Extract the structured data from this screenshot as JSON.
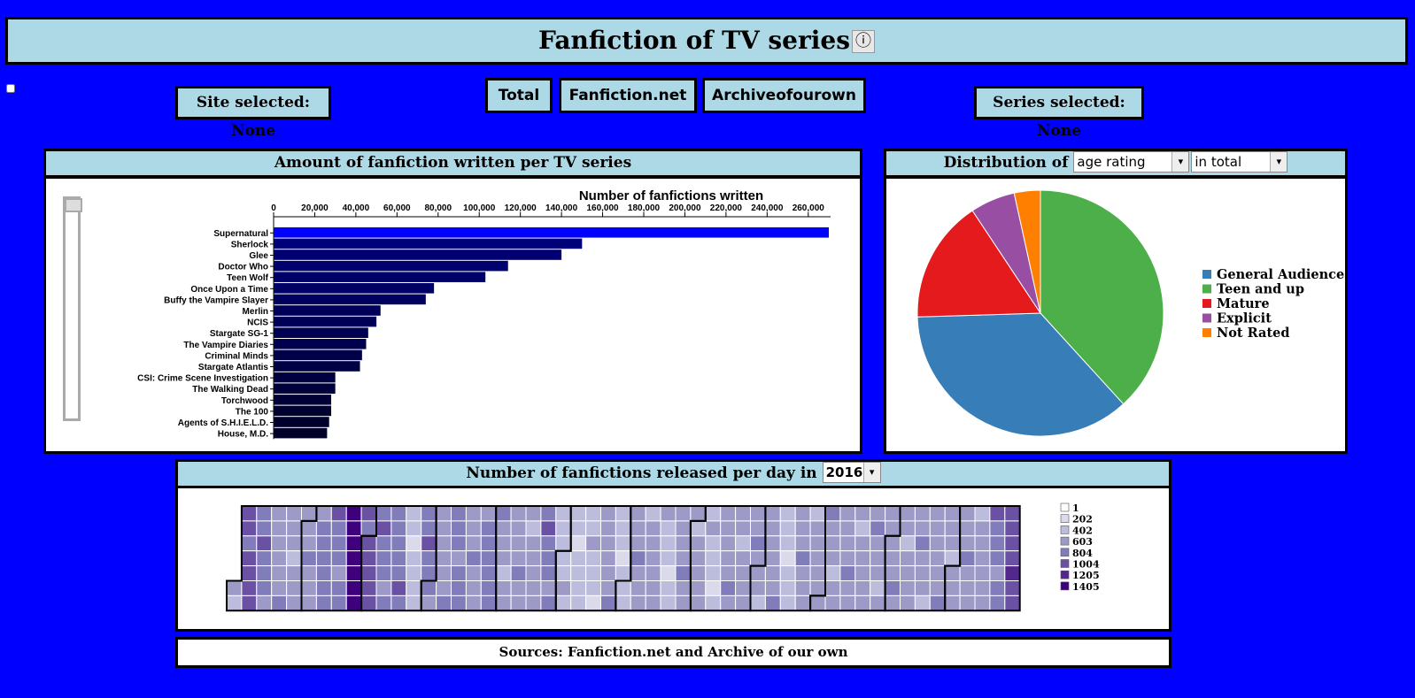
{
  "header": {
    "title": "Fanfiction of TV series",
    "info_icon": "info-icon"
  },
  "controls": {
    "site_selected": "Site selected: None",
    "series_selected": "Series selected: None",
    "buttons": [
      "Total",
      "Fanfiction.net",
      "Archiveofourown"
    ]
  },
  "bar_panel": {
    "title": "Amount of fanfiction written per TV series"
  },
  "pie_panel": {
    "title_prefix": "Distribution of",
    "metric_selected": "age rating",
    "scope_selected": "in total"
  },
  "calendar_panel": {
    "title_prefix": "Number of fanfictions released per day in",
    "year_selected": "2016"
  },
  "footer": {
    "sources": "Sources: Fanfiction.net and Archive of our own"
  },
  "colors": {
    "background": "#0000ff",
    "panel_header": "#add8e6",
    "bar_highlight": "#0000ff",
    "bar_dark": "#000033"
  },
  "chart_data": [
    {
      "type": "bar",
      "orientation": "horizontal",
      "title": "Number of fanfictions written",
      "categories": [
        "Supernatural",
        "Sherlock",
        "Glee",
        "Doctor Who",
        "Teen Wolf",
        "Once Upon a Time",
        "Buffy the Vampire Slayer",
        "Merlin",
        "NCIS",
        "Stargate SG-1",
        "The Vampire Diaries",
        "Criminal Minds",
        "Stargate Atlantis",
        "CSI: Crime Scene Investigation",
        "The Walking Dead",
        "Torchwood",
        "The 100",
        "Agents of S.H.I.E.L.D.",
        "House, M.D."
      ],
      "values": [
        270000,
        150000,
        140000,
        114000,
        103000,
        78000,
        74000,
        52000,
        50000,
        46000,
        45000,
        43000,
        42000,
        30000,
        30000,
        28000,
        28000,
        27000,
        26000
      ],
      "xlim": [
        0,
        270000
      ],
      "xticks": [
        0,
        20000,
        40000,
        60000,
        80000,
        100000,
        120000,
        140000,
        160000,
        180000,
        200000,
        220000,
        240000,
        260000
      ],
      "xtick_labels": [
        "0",
        "20,000",
        "40,000",
        "60,000",
        "80,000",
        "100,000",
        "120,000",
        "140,000",
        "160,000",
        "180,000",
        "200,000",
        "220,000",
        "240,000",
        "260,000"
      ]
    },
    {
      "type": "pie",
      "labels": [
        "General Audiences",
        "Teen and up",
        "Mature",
        "Explicit",
        "Not Rated"
      ],
      "values": [
        37,
        39,
        16.5,
        6,
        3.5
      ],
      "colors": [
        "#377eb8",
        "#4daf4a",
        "#e41a1c",
        "#984ea3",
        "#ff7f00"
      ],
      "legend": "right"
    },
    {
      "type": "heatmap",
      "year": "2016",
      "legend_values": [
        1,
        202,
        402,
        603,
        804,
        1004,
        1205,
        1405
      ],
      "legend_colors": [
        "#fcfbfd",
        "#dadaeb",
        "#bcbddc",
        "#9e9ac8",
        "#807dba",
        "#6a51a3",
        "#54278f",
        "#3f007d"
      ],
      "week_values": [
        2,
        5,
        4,
        3,
        3,
        3,
        4,
        4,
        7,
        5,
        4,
        4,
        2,
        4,
        3,
        4,
        3,
        4,
        3,
        3,
        3,
        4,
        2,
        2,
        2,
        3,
        2,
        3,
        3,
        2,
        3,
        3,
        2,
        3,
        3,
        3,
        3,
        2,
        3,
        3,
        3,
        3,
        3,
        3,
        3,
        3,
        3,
        3,
        3,
        3,
        3,
        4,
        5
      ]
    }
  ]
}
